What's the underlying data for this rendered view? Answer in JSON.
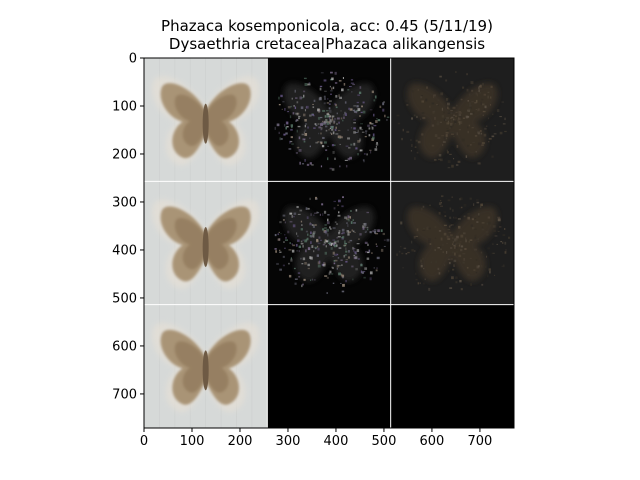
{
  "chart_data": {
    "type": "image_grid",
    "title_lines": [
      "Phazaca kosemponicola, acc: 0.45 (5/11/19)",
      "Dysaethria cretacea|Phazaca alikangensis"
    ],
    "xlim": [
      0,
      771
    ],
    "ylim": [
      771,
      0
    ],
    "x_ticks": [
      0,
      100,
      200,
      300,
      400,
      500,
      600,
      700
    ],
    "y_ticks": [
      0,
      100,
      200,
      300,
      400,
      500,
      600,
      700
    ],
    "grid_rows": 3,
    "grid_cols": 3,
    "tile_size": 257,
    "tiles": [
      {
        "row": 0,
        "col": 0,
        "kind": "specimen"
      },
      {
        "row": 0,
        "col": 1,
        "kind": "saliency-color"
      },
      {
        "row": 0,
        "col": 2,
        "kind": "saliency-dark"
      },
      {
        "row": 1,
        "col": 0,
        "kind": "specimen"
      },
      {
        "row": 1,
        "col": 1,
        "kind": "saliency-color"
      },
      {
        "row": 1,
        "col": 2,
        "kind": "saliency-dark"
      },
      {
        "row": 2,
        "col": 0,
        "kind": "specimen"
      },
      {
        "row": 2,
        "col": 1,
        "kind": "empty"
      },
      {
        "row": 2,
        "col": 2,
        "kind": "empty"
      }
    ],
    "colors": {
      "specimen_bg": "#d6d9d8",
      "saliency_color_bg": "#050505",
      "saliency_dark_bg": "#1e1e1e",
      "empty_bg": "#000000",
      "separator": "#ffffff"
    }
  }
}
